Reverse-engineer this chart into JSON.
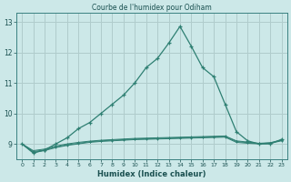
{
  "title": "Courbe de l'humidex pour Odiham",
  "xlabel": "Humidex (Indice chaleur)",
  "bg_color": "#cce8e8",
  "grid_color": "#b0cccc",
  "line_color": "#2e7f72",
  "xlim": [
    -0.5,
    23.5
  ],
  "ylim": [
    8.5,
    13.3
  ],
  "yticks": [
    9,
    10,
    11,
    12,
    13
  ],
  "xticks": [
    0,
    1,
    2,
    3,
    4,
    5,
    6,
    7,
    8,
    9,
    10,
    11,
    12,
    13,
    14,
    15,
    16,
    17,
    18,
    19,
    20,
    21,
    22,
    23
  ],
  "main_curve_x": [
    0,
    1,
    2,
    3,
    4,
    5,
    6,
    7,
    8,
    9,
    10,
    11,
    12,
    13,
    14,
    15,
    16,
    17,
    18,
    19,
    20,
    21,
    22,
    23
  ],
  "main_curve_y": [
    9.0,
    8.7,
    8.8,
    9.0,
    9.2,
    9.5,
    9.7,
    10.0,
    10.3,
    10.6,
    11.0,
    11.5,
    11.8,
    12.3,
    12.85,
    12.2,
    11.5,
    11.2,
    10.3,
    9.4,
    9.1,
    9.0,
    9.0,
    9.15
  ],
  "flat_curves": [
    [
      9.0,
      8.72,
      8.78,
      8.88,
      8.95,
      9.0,
      9.05,
      9.08,
      9.1,
      9.12,
      9.14,
      9.15,
      9.16,
      9.17,
      9.18,
      9.19,
      9.2,
      9.21,
      9.22,
      9.05,
      9.02,
      9.0,
      9.02,
      9.1
    ],
    [
      9.0,
      8.75,
      8.8,
      8.9,
      8.97,
      9.02,
      9.07,
      9.1,
      9.12,
      9.14,
      9.16,
      9.17,
      9.18,
      9.19,
      9.2,
      9.21,
      9.22,
      9.23,
      9.24,
      9.08,
      9.04,
      9.01,
      9.03,
      9.12
    ],
    [
      9.0,
      8.78,
      8.83,
      8.93,
      9.0,
      9.05,
      9.09,
      9.12,
      9.14,
      9.16,
      9.18,
      9.19,
      9.2,
      9.21,
      9.22,
      9.23,
      9.24,
      9.25,
      9.26,
      9.1,
      9.06,
      9.02,
      9.04,
      9.13
    ]
  ]
}
